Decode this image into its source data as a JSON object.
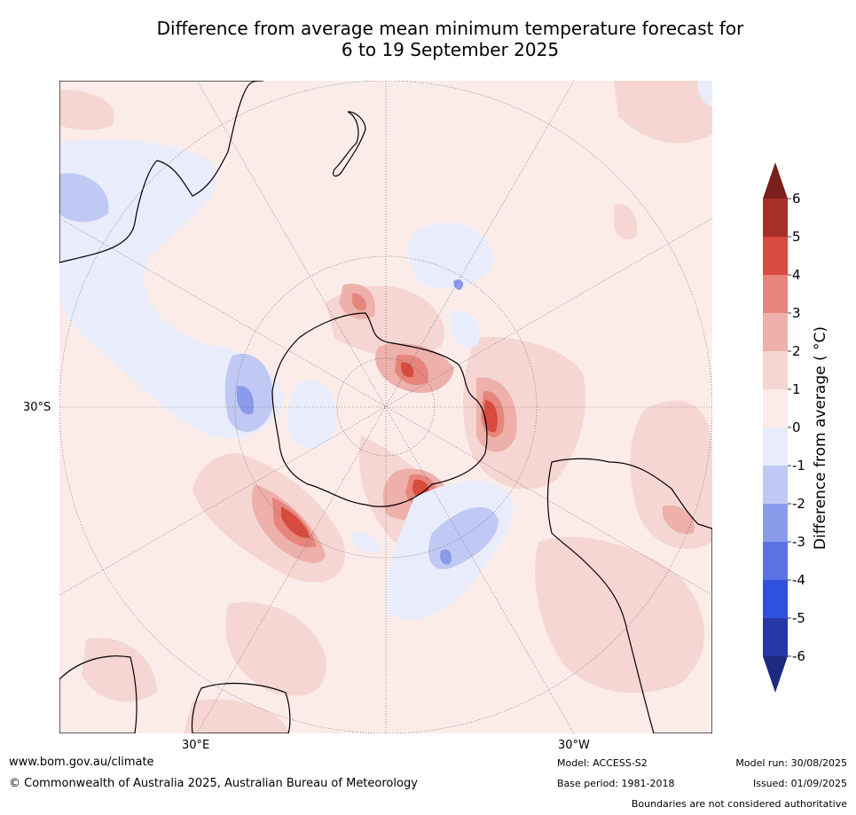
{
  "title_line1": "Difference from average mean minimum temperature forecast for",
  "title_line2": "6 to 19 September 2025",
  "map": {
    "projection": "south-polar-stereographic",
    "lat_label": "30°S",
    "lon_labels": [
      "30°E",
      "30°W"
    ],
    "colors": {
      "coast": "#000000",
      "borders": "#7a7a7a",
      "graticule": "#555555"
    }
  },
  "colorbar": {
    "title": "Difference from average ( °C)",
    "tick_labels": [
      "6",
      "5",
      "4",
      "3",
      "2",
      "1",
      "0",
      "-1",
      "-2",
      "-3",
      "-4",
      "-5",
      "-6"
    ],
    "bins": [
      {
        "range": [
          5,
          6
        ],
        "color": "#a8302a"
      },
      {
        "range": [
          4,
          5
        ],
        "color": "#d94a3f"
      },
      {
        "range": [
          3,
          4
        ],
        "color": "#e6857c"
      },
      {
        "range": [
          2,
          3
        ],
        "color": "#edb0aa"
      },
      {
        "range": [
          1,
          2
        ],
        "color": "#f5d6d3"
      },
      {
        "range": [
          0,
          1
        ],
        "color": "#fbecea"
      },
      {
        "range": [
          -1,
          0
        ],
        "color": "#e9edfb"
      },
      {
        "range": [
          -2,
          -1
        ],
        "color": "#c0c9f4"
      },
      {
        "range": [
          -3,
          -2
        ],
        "color": "#8a9beb"
      },
      {
        "range": [
          -4,
          -3
        ],
        "color": "#5a72e3"
      },
      {
        "range": [
          -5,
          -4
        ],
        "color": "#3050e0"
      },
      {
        "range": [
          -6,
          -5
        ],
        "color": "#2438a8"
      }
    ],
    "over_color": "#7b1f1c",
    "under_color": "#1e2a80"
  },
  "footer": {
    "url": "www.bom.gov.au/climate",
    "copyright": "© Commonwealth of Australia 2025, Australian Bureau of Meteorology",
    "model": "Model: ACCESS-S2",
    "base_period": "Base period: 1981-2018",
    "model_run": "Model run: 30/08/2025",
    "issued": "Issued: 01/09/2025",
    "disclaimer": "Boundaries are not considered authoritative"
  }
}
